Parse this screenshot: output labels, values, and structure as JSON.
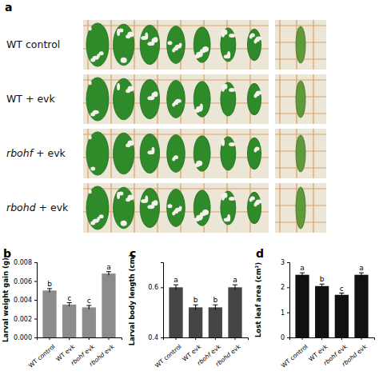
{
  "photo_panel": {
    "panel_label": "a",
    "rows": [
      "WT control",
      "WT + evk",
      "rbohf + evk",
      "rbohd + evk"
    ]
  },
  "chart_data": [
    {
      "type": "bar",
      "panel_label": "b",
      "y_label": "Larval weight gain (g)",
      "categories": [
        "WT control",
        "WT evk",
        "rbohf evk",
        "rbohd evk"
      ],
      "values": [
        0.005,
        0.0035,
        0.0032,
        0.0068
      ],
      "errors": [
        0.0002,
        0.0002,
        0.0002,
        0.0002
      ],
      "annotations": [
        "b",
        "c",
        "c",
        "a"
      ],
      "color": "#8c8c8c",
      "ylim": [
        0,
        0.008
      ],
      "yticks": [
        {
          "value": 0,
          "label": "0.000"
        },
        {
          "value": 0.002,
          "label": "0.002"
        },
        {
          "value": 0.004,
          "label": "0.004"
        },
        {
          "value": 0.006,
          "label": "0.006"
        },
        {
          "value": 0.008,
          "label": "0.008"
        }
      ]
    },
    {
      "type": "bar",
      "panel_label": "c",
      "y_label": "Larval body length (cm)",
      "categories": [
        "WT control",
        "WT evk",
        "rbohf evk",
        "rbohd evk"
      ],
      "values": [
        0.6,
        0.52,
        0.52,
        0.6
      ],
      "errors": [
        0.01,
        0.01,
        0.01,
        0.01
      ],
      "annotations": [
        "a",
        "b",
        "b",
        "a"
      ],
      "color": "#454545",
      "ylim": [
        0.4,
        0.7
      ],
      "yticks": [
        0.4,
        0.6
      ]
    },
    {
      "type": "bar",
      "panel_label": "d",
      "y_label": "Lost leaf area (cm²)",
      "categories": [
        "WT control",
        "WT evk",
        "rbohf evk",
        "rbohd evk"
      ],
      "values": [
        2.5,
        2.05,
        1.7,
        2.5
      ],
      "errors": [
        0.08,
        0.08,
        0.07,
        0.08
      ],
      "annotations": [
        "a",
        "b",
        "c",
        "a"
      ],
      "color": "#111111",
      "ylim": [
        0,
        3
      ],
      "yticks": [
        0,
        1,
        2,
        3
      ]
    }
  ]
}
